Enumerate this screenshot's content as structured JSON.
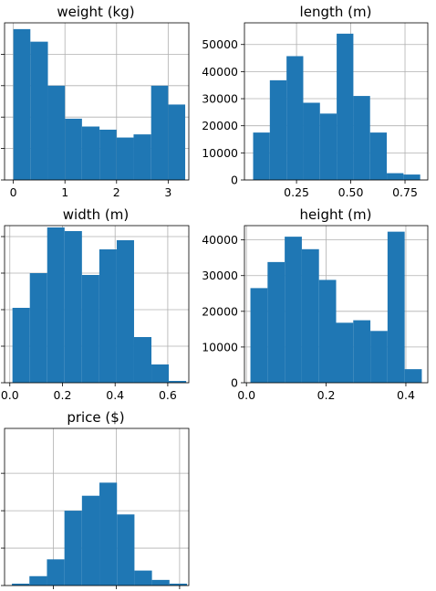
{
  "charts": [
    {
      "title": "weight (kg)",
      "type": "bar",
      "xlim": [
        -0.17,
        3.4
      ],
      "ylim": [
        0,
        50000
      ],
      "xticks": [
        {
          "v": 0,
          "label": "0"
        },
        {
          "v": 1,
          "label": "1"
        },
        {
          "v": 2,
          "label": "2"
        },
        {
          "v": 3,
          "label": "3"
        }
      ],
      "yticks": [
        {
          "v": 0,
          "label": ""
        },
        {
          "v": 10000,
          "label": ""
        },
        {
          "v": 20000,
          "label": ""
        },
        {
          "v": 30000,
          "label": ""
        },
        {
          "v": 40000,
          "label": ""
        }
      ],
      "bins": [
        0,
        0.33,
        0.67,
        1.0,
        1.33,
        1.67,
        2.0,
        2.33,
        2.67,
        3.0,
        3.33
      ],
      "values": [
        48000,
        44000,
        30000,
        19500,
        17000,
        16000,
        13500,
        14500,
        30000,
        24000
      ]
    },
    {
      "title": "length (m)",
      "type": "bar",
      "xlim": [
        0.01,
        0.855
      ],
      "ylim": [
        0,
        58000
      ],
      "xticks": [
        {
          "v": 0.25,
          "label": "0.25"
        },
        {
          "v": 0.5,
          "label": "0.50"
        },
        {
          "v": 0.75,
          "label": "0.75"
        }
      ],
      "yticks": [
        {
          "v": 0,
          "label": "0"
        },
        {
          "v": 10000,
          "label": "10000"
        },
        {
          "v": 20000,
          "label": "20000"
        },
        {
          "v": 30000,
          "label": "30000"
        },
        {
          "v": 40000,
          "label": "40000"
        },
        {
          "v": 50000,
          "label": "50000"
        }
      ],
      "bins": [
        0.05,
        0.127,
        0.204,
        0.281,
        0.358,
        0.435,
        0.512,
        0.589,
        0.666,
        0.743,
        0.82
      ],
      "values": [
        17500,
        36800,
        45700,
        28500,
        24500,
        54000,
        31000,
        17500,
        2500,
        2000
      ]
    },
    {
      "title": "width (m)",
      "type": "bar",
      "xlim": [
        -0.02,
        0.68
      ],
      "ylim": [
        0,
        43000
      ],
      "xticks": [
        {
          "v": 0,
          "label": "0.0"
        },
        {
          "v": 0.2,
          "label": "0.2"
        },
        {
          "v": 0.4,
          "label": "0.4"
        },
        {
          "v": 0.6,
          "label": "0.6"
        }
      ],
      "yticks": [
        {
          "v": 0,
          "label": ""
        },
        {
          "v": 10000,
          "label": ""
        },
        {
          "v": 20000,
          "label": ""
        },
        {
          "v": 30000,
          "label": ""
        },
        {
          "v": 40000,
          "label": ""
        }
      ],
      "bins": [
        0.01,
        0.076,
        0.142,
        0.208,
        0.274,
        0.34,
        0.406,
        0.472,
        0.538,
        0.604,
        0.67
      ],
      "values": [
        20500,
        30000,
        42500,
        41500,
        29500,
        36500,
        39000,
        12500,
        5000,
        500
      ]
    },
    {
      "title": "height (m)",
      "type": "bar",
      "xlim": [
        -0.005,
        0.455
      ],
      "ylim": [
        0,
        44000
      ],
      "xticks": [
        {
          "v": 0,
          "label": "0.0"
        },
        {
          "v": 0.2,
          "label": "0.2"
        },
        {
          "v": 0.4,
          "label": "0.4"
        }
      ],
      "yticks": [
        {
          "v": 0,
          "label": "0"
        },
        {
          "v": 10000,
          "label": "10000"
        },
        {
          "v": 20000,
          "label": "20000"
        },
        {
          "v": 30000,
          "label": "30000"
        },
        {
          "v": 40000,
          "label": "40000"
        }
      ],
      "bins": [
        0.01,
        0.053,
        0.096,
        0.139,
        0.182,
        0.225,
        0.268,
        0.311,
        0.354,
        0.397,
        0.44
      ],
      "values": [
        26500,
        33800,
        40900,
        37400,
        28800,
        16800,
        17500,
        14500,
        42300,
        3800
      ]
    },
    {
      "title": "price ($)",
      "type": "bar",
      "xlim": [
        0,
        10
      ],
      "ylim": [
        0,
        42000
      ],
      "xticks": [
        {
          "v": 2.65,
          "label": ""
        },
        {
          "v": 6.07,
          "label": ""
        },
        {
          "v": 9.5,
          "label": ""
        }
      ],
      "yticks": [
        {
          "v": 0,
          "label": ""
        },
        {
          "v": 10000,
          "label": ""
        },
        {
          "v": 20000,
          "label": ""
        },
        {
          "v": 30000,
          "label": ""
        }
      ],
      "bins": [
        0.4,
        1.35,
        2.3,
        3.25,
        4.2,
        5.15,
        6.1,
        7.05,
        8.0,
        8.95,
        9.9
      ],
      "values": [
        500,
        2500,
        7000,
        20000,
        24000,
        27500,
        19000,
        4000,
        1500,
        500
      ]
    }
  ]
}
